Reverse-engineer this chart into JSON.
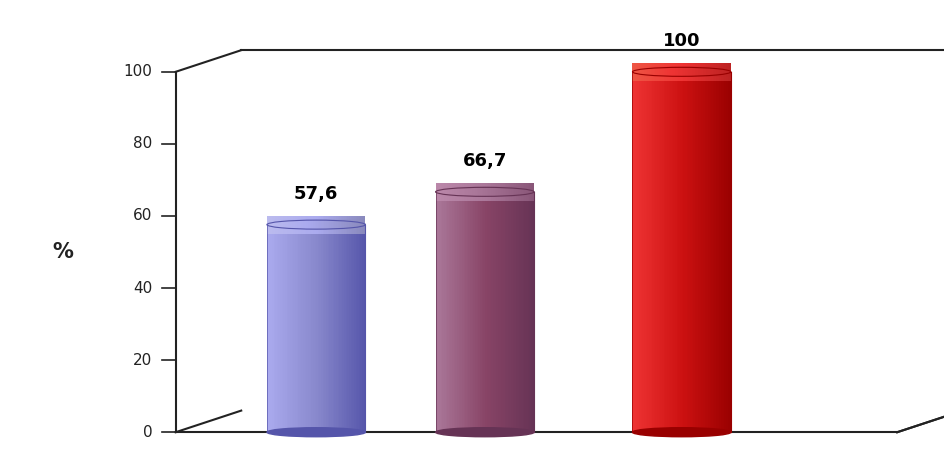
{
  "values": [
    57.6,
    66.7,
    100.0
  ],
  "labels": [
    "57,6",
    "66,7",
    "100"
  ],
  "bar_colors_light": [
    "#AAAAEE",
    "#AA7799",
    "#EE3333"
  ],
  "bar_colors_mid": [
    "#8888CC",
    "#884466",
    "#CC1111"
  ],
  "bar_colors_dark": [
    "#5555AA",
    "#663355",
    "#990000"
  ],
  "bar_colors_top": [
    "#BBBBEE",
    "#BB88AA",
    "#EE5544"
  ],
  "bar_colors_top_dark": [
    "#8888BB",
    "#885577",
    "#BB2222"
  ],
  "ylabel": "%",
  "yticks": [
    0,
    20,
    40,
    60,
    80,
    100
  ],
  "ylim_max": 110,
  "background_color": "#ffffff",
  "label_fontsize": 13,
  "ylabel_fontsize": 15,
  "axis_color": "#222222",
  "grid_color": "#cccccc"
}
